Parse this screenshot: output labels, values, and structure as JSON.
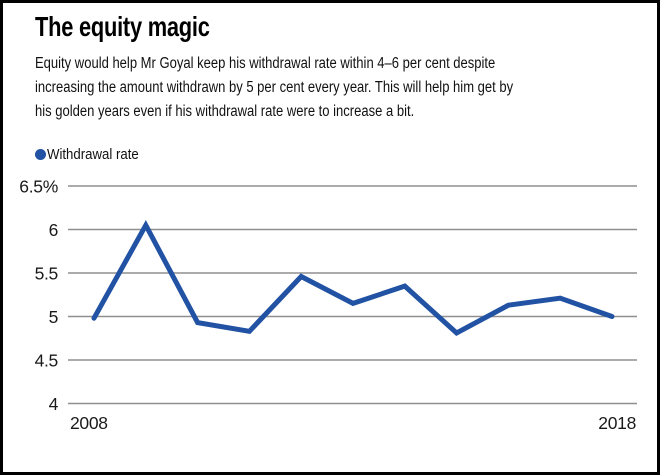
{
  "header": {
    "title": "The equity magic",
    "description_lines": [
      "Equity would help Mr Goyal keep his withdrawal rate within 4–6 per cent despite",
      "increasing the amount withdrawn by 5 per cent every year. This will help him get by",
      "his golden years even if his withdrawal rate were to increase a bit."
    ]
  },
  "legend": {
    "label": "Withdrawal rate",
    "marker_color": "#2152a3"
  },
  "chart_data": {
    "type": "line",
    "title": "The equity magic",
    "x": [
      2008,
      2009,
      2010,
      2011,
      2012,
      2013,
      2014,
      2015,
      2016,
      2017,
      2018
    ],
    "series": [
      {
        "name": "Withdrawal rate",
        "color": "#2152a3",
        "values": [
          4.98,
          6.05,
          4.93,
          4.83,
          5.46,
          5.15,
          5.35,
          4.81,
          5.13,
          5.21,
          5.0
        ]
      }
    ],
    "ylim": [
      4,
      6.5
    ],
    "y_ticks": [
      {
        "value": 6.5,
        "label": "6.5%"
      },
      {
        "value": 6,
        "label": "6"
      },
      {
        "value": 5.5,
        "label": "5.5"
      },
      {
        "value": 5,
        "label": "5"
      },
      {
        "value": 4.5,
        "label": "4.5"
      },
      {
        "value": 4,
        "label": "4"
      }
    ],
    "x_tick_labels": [
      {
        "x": 2008,
        "label": "2008",
        "align": "start"
      },
      {
        "x": 2018,
        "label": "2018",
        "align": "end"
      }
    ],
    "grid": "horizontal",
    "legend_position": "top-left",
    "colors": {
      "grid": "#8f8f8f",
      "axis_text": "#1a1a1a",
      "background": "#ffffff",
      "border": "#000000"
    }
  }
}
